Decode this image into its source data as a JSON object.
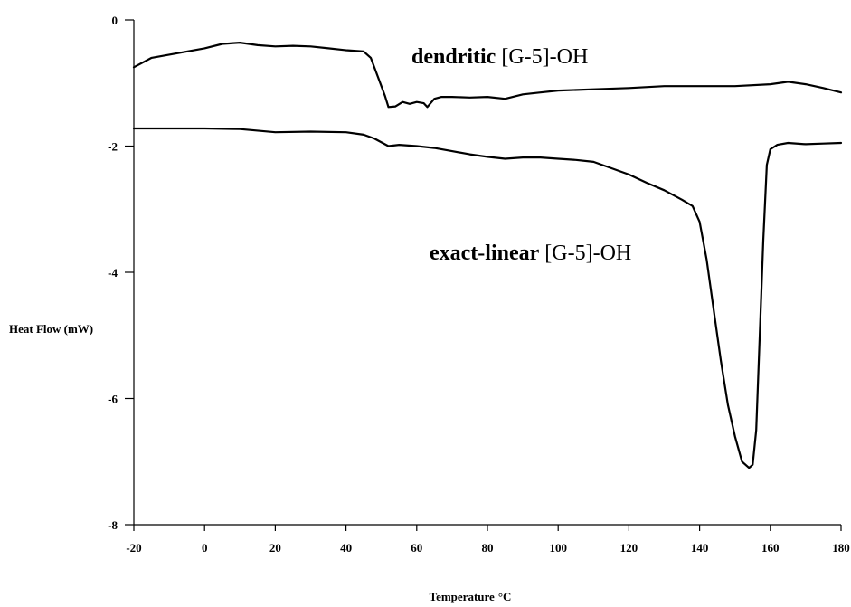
{
  "chart_data": {
    "type": "line",
    "xlabel": "Temperature",
    "xlabel_unit": "°C",
    "ylabel": "Heat Flow (mW)",
    "xlim": [
      -20,
      180
    ],
    "ylim": [
      -8,
      0
    ],
    "xticks": [
      -20,
      0,
      20,
      40,
      60,
      80,
      100,
      120,
      140,
      160,
      180
    ],
    "yticks": [
      0,
      -2,
      -4,
      -6,
      -8
    ],
    "grid": false,
    "series": [
      {
        "name_bold": "dendritic",
        "name_rest": " [G-5]-OH",
        "color": "#000000",
        "points": [
          [
            -20,
            -0.75
          ],
          [
            -15,
            -0.6
          ],
          [
            -10,
            -0.55
          ],
          [
            -5,
            -0.5
          ],
          [
            0,
            -0.45
          ],
          [
            5,
            -0.38
          ],
          [
            10,
            -0.36
          ],
          [
            15,
            -0.4
          ],
          [
            20,
            -0.42
          ],
          [
            25,
            -0.41
          ],
          [
            30,
            -0.42
          ],
          [
            35,
            -0.45
          ],
          [
            40,
            -0.48
          ],
          [
            45,
            -0.5
          ],
          [
            47,
            -0.6
          ],
          [
            49,
            -0.9
          ],
          [
            51,
            -1.2
          ],
          [
            52,
            -1.38
          ],
          [
            54,
            -1.37
          ],
          [
            56,
            -1.3
          ],
          [
            58,
            -1.33
          ],
          [
            60,
            -1.3
          ],
          [
            62,
            -1.32
          ],
          [
            63,
            -1.38
          ],
          [
            65,
            -1.25
          ],
          [
            67,
            -1.22
          ],
          [
            70,
            -1.22
          ],
          [
            75,
            -1.23
          ],
          [
            80,
            -1.22
          ],
          [
            85,
            -1.25
          ],
          [
            90,
            -1.18
          ],
          [
            95,
            -1.15
          ],
          [
            100,
            -1.12
          ],
          [
            110,
            -1.1
          ],
          [
            120,
            -1.08
          ],
          [
            130,
            -1.05
          ],
          [
            140,
            -1.05
          ],
          [
            150,
            -1.05
          ],
          [
            160,
            -1.02
          ],
          [
            165,
            -0.98
          ],
          [
            170,
            -1.02
          ],
          [
            175,
            -1.08
          ],
          [
            180,
            -1.15
          ]
        ]
      },
      {
        "name_bold": "exact-linear",
        "name_rest": " [G-5]-OH",
        "color": "#000000",
        "points": [
          [
            -20,
            -1.72
          ],
          [
            -10,
            -1.72
          ],
          [
            0,
            -1.72
          ],
          [
            10,
            -1.73
          ],
          [
            20,
            -1.78
          ],
          [
            30,
            -1.77
          ],
          [
            40,
            -1.78
          ],
          [
            45,
            -1.82
          ],
          [
            48,
            -1.88
          ],
          [
            52,
            -2.0
          ],
          [
            55,
            -1.98
          ],
          [
            60,
            -2.0
          ],
          [
            65,
            -2.03
          ],
          [
            70,
            -2.08
          ],
          [
            75,
            -2.13
          ],
          [
            80,
            -2.17
          ],
          [
            85,
            -2.2
          ],
          [
            90,
            -2.18
          ],
          [
            95,
            -2.18
          ],
          [
            100,
            -2.2
          ],
          [
            105,
            -2.22
          ],
          [
            110,
            -2.25
          ],
          [
            115,
            -2.35
          ],
          [
            120,
            -2.45
          ],
          [
            125,
            -2.58
          ],
          [
            130,
            -2.7
          ],
          [
            135,
            -2.85
          ],
          [
            138,
            -2.95
          ],
          [
            140,
            -3.2
          ],
          [
            142,
            -3.8
          ],
          [
            144,
            -4.6
          ],
          [
            146,
            -5.4
          ],
          [
            148,
            -6.1
          ],
          [
            150,
            -6.6
          ],
          [
            152,
            -7.0
          ],
          [
            154,
            -7.1
          ],
          [
            155,
            -7.05
          ],
          [
            156,
            -6.5
          ],
          [
            157,
            -5.0
          ],
          [
            158,
            -3.5
          ],
          [
            159,
            -2.3
          ],
          [
            160,
            -2.05
          ],
          [
            162,
            -1.98
          ],
          [
            165,
            -1.95
          ],
          [
            170,
            -1.97
          ],
          [
            175,
            -1.96
          ],
          [
            180,
            -1.95
          ]
        ]
      }
    ]
  }
}
